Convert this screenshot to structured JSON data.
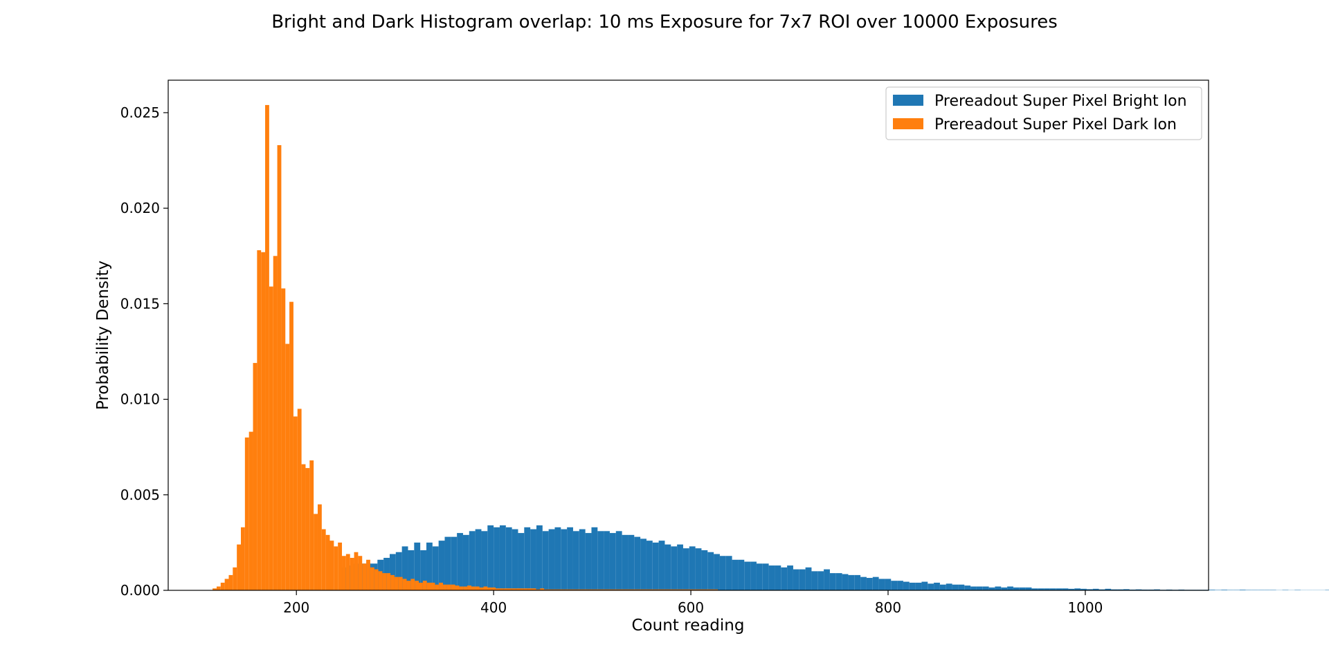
{
  "chart_data": {
    "type": "bar",
    "title": "Bright and Dark Histogram overlap: 10 ms Exposure for 7x7 ROI over 10000 Exposures",
    "xlabel": "Count reading",
    "ylabel": "Probability Density",
    "xlim": [
      70,
      1125
    ],
    "ylim": [
      0,
      0.0267
    ],
    "xticks": [
      200,
      400,
      600,
      800,
      1000
    ],
    "xtick_labels": [
      "200",
      "400",
      "600",
      "800",
      "1000"
    ],
    "yticks": [
      0,
      0.005,
      0.01,
      0.015,
      0.02,
      0.025
    ],
    "ytick_labels": [
      "0.000",
      "0.005",
      "0.010",
      "0.015",
      "0.020",
      "0.025"
    ],
    "legend_position": "top-right",
    "grid": false,
    "series": [
      {
        "name": "Prereadout Super Pixel Bright Ion",
        "color": "#1f77b4",
        "bin_start": 245,
        "bin_width": 6.2,
        "values": [
          0.0012,
          0.0013,
          0.0014,
          0.0014,
          0.0014,
          0.0014,
          0.0016,
          0.0017,
          0.0019,
          0.002,
          0.0023,
          0.0021,
          0.0025,
          0.0021,
          0.0025,
          0.0023,
          0.0026,
          0.0028,
          0.0028,
          0.003,
          0.0029,
          0.0031,
          0.0032,
          0.0031,
          0.0034,
          0.0033,
          0.0034,
          0.0033,
          0.0032,
          0.003,
          0.0033,
          0.0032,
          0.0034,
          0.0031,
          0.0032,
          0.0033,
          0.0032,
          0.0033,
          0.0031,
          0.0032,
          0.003,
          0.0033,
          0.0031,
          0.0031,
          0.003,
          0.0031,
          0.0029,
          0.0029,
          0.0028,
          0.0027,
          0.0026,
          0.0025,
          0.0026,
          0.0024,
          0.0023,
          0.0024,
          0.0022,
          0.0023,
          0.0022,
          0.0021,
          0.002,
          0.0019,
          0.0018,
          0.0018,
          0.0016,
          0.0016,
          0.0015,
          0.0015,
          0.0014,
          0.0014,
          0.0013,
          0.0013,
          0.0012,
          0.0013,
          0.0011,
          0.0011,
          0.0012,
          0.001,
          0.001,
          0.0011,
          0.0009,
          0.0009,
          0.00085,
          0.0008,
          0.0008,
          0.0007,
          0.00065,
          0.0007,
          0.0006,
          0.0006,
          0.0005,
          0.0005,
          0.00045,
          0.0004,
          0.0004,
          0.00045,
          0.00035,
          0.0004,
          0.0003,
          0.00035,
          0.0003,
          0.0003,
          0.00025,
          0.0002,
          0.0002,
          0.0002,
          0.00015,
          0.0002,
          0.00015,
          0.0002,
          0.00015,
          0.00015,
          0.00015,
          0.0001,
          0.0001,
          0.0001,
          0.0001,
          0.0001,
          0.0001,
          8e-05,
          0.0001,
          8e-05,
          6e-05,
          8e-05,
          5e-05,
          8e-05,
          5e-05,
          5e-05,
          6e-05,
          4e-05,
          5e-05,
          4e-05,
          4e-05,
          5e-05,
          3e-05,
          4e-05,
          3e-05,
          4e-05,
          3e-05,
          3e-05,
          3e-05,
          3e-05,
          3e-05,
          2e-05,
          3e-05,
          2e-05,
          2e-05,
          3e-05,
          2e-05,
          2e-05,
          2e-05,
          2e-05,
          2e-05,
          1e-05,
          2e-05,
          1e-05,
          2e-05,
          1e-05,
          1e-05,
          1e-05,
          1e-05,
          2e-05,
          1e-05,
          1e-05,
          1e-05,
          1e-05,
          1e-05,
          1e-05,
          1e-05,
          1e-05,
          1e-05,
          1e-05,
          1e-05,
          1e-05,
          1e-05,
          1e-05,
          1e-05,
          1e-05,
          1e-05,
          1e-05,
          1e-05,
          1e-05,
          1e-05,
          1e-05,
          1e-05,
          1e-05,
          1e-05,
          1e-05,
          1e-05,
          1e-05,
          1e-05,
          1e-05,
          1e-05,
          1e-05,
          1e-05,
          1e-05,
          1e-05,
          1e-05,
          1e-05,
          1e-05,
          1e-05,
          1e-05,
          1e-05,
          1e-05,
          1e-05,
          1e-05,
          1e-05,
          1e-05,
          1e-05,
          1e-05,
          1e-05,
          1e-05,
          1e-05,
          1e-05,
          1e-05,
          1e-05,
          1e-05,
          1e-05,
          1e-05,
          1e-05,
          1e-05,
          1e-05,
          1e-05,
          1e-05,
          1e-05,
          1e-05,
          1e-05,
          1e-05,
          1e-05,
          1e-05,
          1e-05,
          1e-05,
          1e-05,
          1e-05,
          1e-05,
          1e-05,
          1e-05,
          1e-05,
          1e-05,
          1e-05,
          1e-05,
          1e-05,
          1e-05,
          1e-05,
          1e-05,
          1e-05,
          1e-05,
          1e-05,
          1e-05,
          1e-05,
          1e-05,
          1e-05,
          1e-05,
          1e-05,
          1e-05,
          1e-05,
          1e-05,
          1e-05,
          1e-05,
          1e-05,
          1e-05,
          1e-05,
          1e-05
        ]
      },
      {
        "name": "Prereadout Super Pixel Dark Ion",
        "color": "#ff7f0e",
        "bin_start": 115,
        "bin_width": 4.1,
        "values": [
          0.0001,
          0.0002,
          0.0004,
          0.0006,
          0.0008,
          0.0012,
          0.0024,
          0.0033,
          0.008,
          0.0083,
          0.0119,
          0.0178,
          0.0177,
          0.0254,
          0.0159,
          0.0175,
          0.0233,
          0.0158,
          0.0129,
          0.0151,
          0.0091,
          0.0095,
          0.0066,
          0.0064,
          0.0068,
          0.004,
          0.0045,
          0.0032,
          0.0029,
          0.0026,
          0.0023,
          0.0025,
          0.0018,
          0.0019,
          0.0017,
          0.002,
          0.0018,
          0.0014,
          0.0016,
          0.0012,
          0.0011,
          0.001,
          0.0009,
          0.0009,
          0.0008,
          0.0007,
          0.0007,
          0.0006,
          0.0005,
          0.0006,
          0.0005,
          0.0004,
          0.0005,
          0.0004,
          0.0004,
          0.0003,
          0.0004,
          0.0003,
          0.0003,
          0.0003,
          0.00025,
          0.0002,
          0.0002,
          0.00025,
          0.0002,
          0.0002,
          0.00015,
          0.0002,
          0.00015,
          0.00015,
          0.0001,
          0.0001,
          0.0001,
          0.0001,
          0.0001,
          0.0001,
          0.0001,
          0.0001,
          0.0001,
          0.0001,
          5e-05,
          0.0001,
          5e-05,
          5e-05,
          5e-05,
          5e-05,
          5e-05,
          5e-05,
          5e-05,
          5e-05,
          5e-05,
          5e-05,
          5e-05,
          5e-05,
          5e-05,
          5e-05,
          5e-05,
          5e-05,
          5e-05,
          5e-05,
          5e-05,
          5e-05,
          5e-05,
          5e-05,
          5e-05,
          5e-05,
          5e-05,
          5e-05,
          5e-05,
          5e-05,
          5e-05,
          5e-05,
          5e-05,
          5e-05,
          5e-05,
          5e-05,
          5e-05,
          5e-05,
          5e-05,
          5e-05,
          5e-05,
          5e-05,
          5e-05,
          5e-05,
          5e-05
        ]
      }
    ]
  }
}
